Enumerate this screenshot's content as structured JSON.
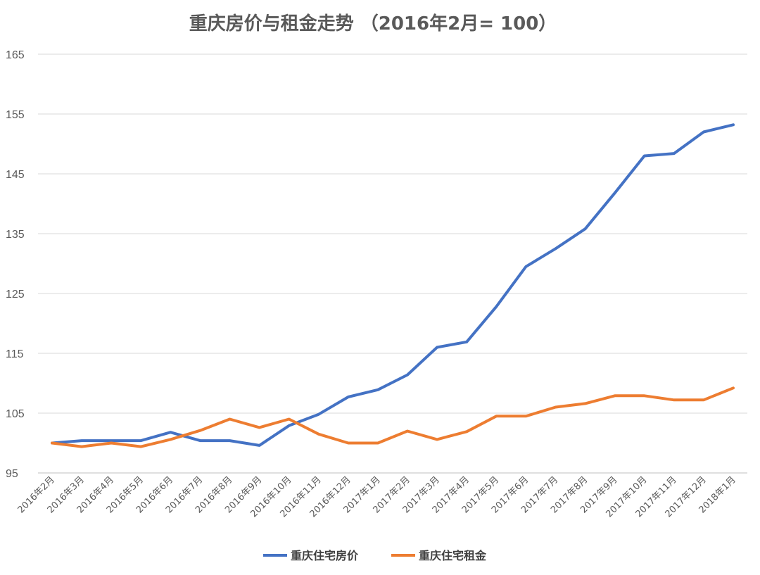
{
  "chart_data": {
    "type": "line",
    "title": "重庆房价与租金走势 （2016年2月= 100）",
    "xlabel": "",
    "ylabel": "",
    "ylim": [
      95,
      165
    ],
    "yticks": [
      95,
      105,
      115,
      125,
      135,
      145,
      155,
      165
    ],
    "grid": true,
    "legend_position": "bottom",
    "categories": [
      "2016年2月",
      "2016年3月",
      "2016年4月",
      "2016年5月",
      "2016年6月",
      "2016年7月",
      "2016年8月",
      "2016年9月",
      "2016年10月",
      "2016年11月",
      "2016年12月",
      "2017年1月",
      "2017年2月",
      "2017年3月",
      "2017年4月",
      "2017年5月",
      "2017年6月",
      "2017年7月",
      "2017年8月",
      "2017年9月",
      "2017年10月",
      "2017年11月",
      "2017年12月",
      "2018年1月"
    ],
    "series": [
      {
        "name": "重庆住宅房价",
        "color": "#4472c4",
        "values": [
          100,
          100.4,
          100.4,
          100.4,
          101.8,
          100.4,
          100.4,
          99.6,
          102.9,
          104.8,
          107.7,
          108.9,
          111.4,
          116,
          116.9,
          122.8,
          129.5,
          132.5,
          135.8,
          141.8,
          148,
          148.4,
          152,
          153.2
        ]
      },
      {
        "name": "重庆住宅租金",
        "color": "#ed7d31",
        "values": [
          100,
          99.4,
          100,
          99.4,
          100.6,
          102.1,
          104,
          102.6,
          104,
          101.5,
          100,
          100,
          102,
          100.6,
          101.9,
          104.5,
          104.5,
          106,
          106.6,
          107.9,
          107.9,
          107.2,
          107.2,
          109.2
        ]
      }
    ]
  }
}
